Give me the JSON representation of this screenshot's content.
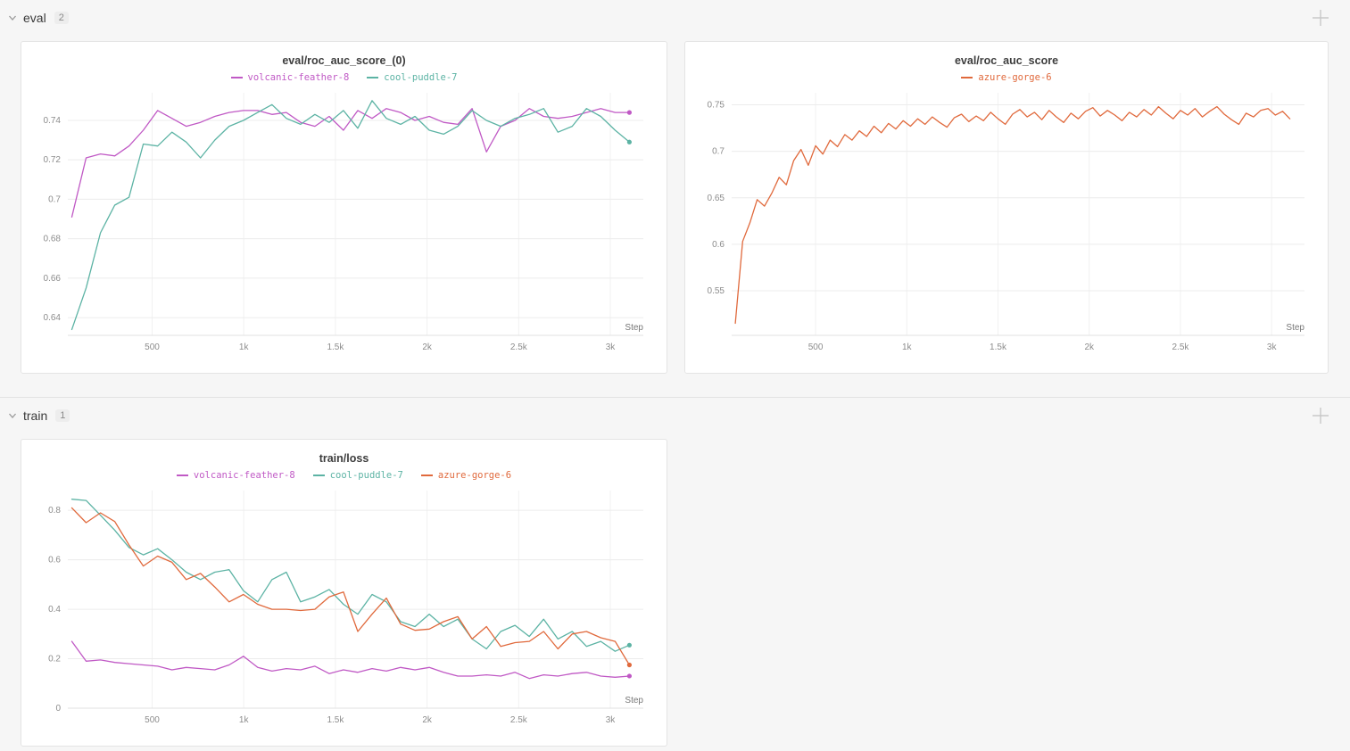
{
  "sections": [
    {
      "label": "eval",
      "count": "2"
    },
    {
      "label": "train",
      "count": "1"
    }
  ],
  "colors": {
    "magenta": "#c059c5",
    "teal": "#5cb3a4",
    "orange": "#e0693c",
    "grid": "#ececec",
    "axis": "#e0e0e0",
    "tick_text": "#8c8c8c"
  },
  "chart_data": [
    {
      "type": "line",
      "title": "eval/roc_auc_score_(0)",
      "xlabel": "Step",
      "xlim": [
        40,
        3180
      ],
      "ylim": [
        0.631,
        0.754
      ],
      "xticks": [
        500,
        1000,
        1500,
        2000,
        2500,
        3000
      ],
      "xtick_labels": [
        "500",
        "1k",
        "1.5k",
        "2k",
        "2.5k",
        "3k"
      ],
      "yticks": [
        0.64,
        0.66,
        0.68,
        0.7,
        0.72,
        0.74
      ],
      "end_dots": true,
      "series": [
        {
          "name": "volcanic-feather-8",
          "color": "#c059c5",
          "x": [
            62,
            140,
            218,
            296,
            374,
            452,
            530,
            608,
            686,
            764,
            842,
            920,
            998,
            1076,
            1154,
            1232,
            1310,
            1388,
            1466,
            1544,
            1622,
            1700,
            1778,
            1856,
            1934,
            2012,
            2090,
            2168,
            2246,
            2324,
            2402,
            2480,
            2558,
            2636,
            2714,
            2792,
            2870,
            2948,
            3026,
            3104
          ],
          "y": [
            0.691,
            0.721,
            0.723,
            0.722,
            0.727,
            0.735,
            0.745,
            0.741,
            0.737,
            0.739,
            0.742,
            0.744,
            0.745,
            0.745,
            0.743,
            0.744,
            0.739,
            0.737,
            0.742,
            0.735,
            0.745,
            0.741,
            0.746,
            0.744,
            0.74,
            0.742,
            0.739,
            0.738,
            0.746,
            0.724,
            0.737,
            0.74,
            0.746,
            0.742,
            0.741,
            0.742,
            0.744,
            0.746,
            0.744,
            0.744
          ]
        },
        {
          "name": "cool-puddle-7",
          "color": "#5cb3a4",
          "x": [
            62,
            140,
            218,
            296,
            374,
            452,
            530,
            608,
            686,
            764,
            842,
            920,
            998,
            1076,
            1154,
            1232,
            1310,
            1388,
            1466,
            1544,
            1622,
            1700,
            1778,
            1856,
            1934,
            2012,
            2090,
            2168,
            2246,
            2324,
            2402,
            2480,
            2558,
            2636,
            2714,
            2792,
            2870,
            2948,
            3026,
            3104
          ],
          "y": [
            0.634,
            0.655,
            0.683,
            0.697,
            0.701,
            0.728,
            0.727,
            0.734,
            0.729,
            0.721,
            0.73,
            0.737,
            0.74,
            0.744,
            0.748,
            0.741,
            0.738,
            0.743,
            0.739,
            0.745,
            0.736,
            0.75,
            0.741,
            0.738,
            0.742,
            0.735,
            0.733,
            0.737,
            0.745,
            0.74,
            0.737,
            0.741,
            0.743,
            0.746,
            0.734,
            0.737,
            0.746,
            0.742,
            0.735,
            0.729
          ]
        }
      ]
    },
    {
      "type": "line",
      "title": "eval/roc_auc_score",
      "xlabel": "Step",
      "xlim": [
        40,
        3180
      ],
      "ylim": [
        0.502,
        0.763
      ],
      "xticks": [
        500,
        1000,
        1500,
        2000,
        2500,
        3000
      ],
      "xtick_labels": [
        "500",
        "1k",
        "1.5k",
        "2k",
        "2.5k",
        "3k"
      ],
      "yticks": [
        0.55,
        0.6,
        0.65,
        0.7,
        0.75
      ],
      "end_dots": false,
      "series": [
        {
          "name": "azure-gorge-6",
          "color": "#e0693c",
          "x": [
            60,
            100,
            140,
            180,
            220,
            260,
            300,
            340,
            380,
            420,
            460,
            500,
            540,
            580,
            620,
            660,
            700,
            740,
            780,
            820,
            860,
            900,
            940,
            980,
            1020,
            1060,
            1100,
            1140,
            1180,
            1220,
            1260,
            1300,
            1340,
            1380,
            1420,
            1460,
            1500,
            1540,
            1580,
            1620,
            1660,
            1700,
            1740,
            1780,
            1820,
            1860,
            1900,
            1940,
            1980,
            2020,
            2060,
            2100,
            2140,
            2180,
            2220,
            2260,
            2300,
            2340,
            2380,
            2420,
            2460,
            2500,
            2540,
            2580,
            2620,
            2660,
            2700,
            2740,
            2780,
            2820,
            2860,
            2900,
            2940,
            2980,
            3020,
            3060,
            3100
          ],
          "y": [
            0.515,
            0.603,
            0.623,
            0.648,
            0.641,
            0.655,
            0.672,
            0.664,
            0.69,
            0.702,
            0.685,
            0.706,
            0.697,
            0.712,
            0.705,
            0.718,
            0.712,
            0.722,
            0.716,
            0.727,
            0.72,
            0.73,
            0.724,
            0.733,
            0.727,
            0.735,
            0.729,
            0.737,
            0.731,
            0.726,
            0.736,
            0.74,
            0.732,
            0.738,
            0.733,
            0.742,
            0.735,
            0.729,
            0.74,
            0.745,
            0.737,
            0.742,
            0.734,
            0.744,
            0.737,
            0.731,
            0.741,
            0.735,
            0.743,
            0.747,
            0.738,
            0.744,
            0.739,
            0.733,
            0.742,
            0.737,
            0.745,
            0.739,
            0.748,
            0.741,
            0.735,
            0.744,
            0.739,
            0.746,
            0.737,
            0.743,
            0.748,
            0.74,
            0.734,
            0.729,
            0.741,
            0.737,
            0.744,
            0.746,
            0.739,
            0.743,
            0.735
          ]
        }
      ]
    },
    {
      "type": "line",
      "title": "train/loss",
      "xlabel": "Step",
      "xlim": [
        40,
        3180
      ],
      "ylim": [
        0,
        0.88
      ],
      "xticks": [
        500,
        1000,
        1500,
        2000,
        2500,
        3000
      ],
      "xtick_labels": [
        "500",
        "1k",
        "1.5k",
        "2k",
        "2.5k",
        "3k"
      ],
      "yticks": [
        0,
        0.2,
        0.4,
        0.6,
        0.8
      ],
      "end_dots": true,
      "series": [
        {
          "name": "volcanic-feather-8",
          "color": "#c059c5",
          "x": [
            62,
            140,
            218,
            296,
            374,
            452,
            530,
            608,
            686,
            764,
            842,
            920,
            998,
            1076,
            1154,
            1232,
            1310,
            1388,
            1466,
            1544,
            1622,
            1700,
            1778,
            1856,
            1934,
            2012,
            2090,
            2168,
            2246,
            2324,
            2402,
            2480,
            2558,
            2636,
            2714,
            2792,
            2870,
            2948,
            3026,
            3104
          ],
          "y": [
            0.27,
            0.19,
            0.195,
            0.185,
            0.18,
            0.175,
            0.17,
            0.155,
            0.165,
            0.16,
            0.155,
            0.175,
            0.21,
            0.165,
            0.15,
            0.16,
            0.155,
            0.17,
            0.14,
            0.155,
            0.145,
            0.16,
            0.15,
            0.165,
            0.155,
            0.165,
            0.145,
            0.13,
            0.13,
            0.135,
            0.13,
            0.145,
            0.12,
            0.135,
            0.13,
            0.14,
            0.145,
            0.13,
            0.125,
            0.13
          ]
        },
        {
          "name": "cool-puddle-7",
          "color": "#5cb3a4",
          "x": [
            62,
            140,
            218,
            296,
            374,
            452,
            530,
            608,
            686,
            764,
            842,
            920,
            998,
            1076,
            1154,
            1232,
            1310,
            1388,
            1466,
            1544,
            1622,
            1700,
            1778,
            1856,
            1934,
            2012,
            2090,
            2168,
            2246,
            2324,
            2402,
            2480,
            2558,
            2636,
            2714,
            2792,
            2870,
            2948,
            3026,
            3104
          ],
          "y": [
            0.845,
            0.84,
            0.78,
            0.72,
            0.65,
            0.62,
            0.645,
            0.6,
            0.55,
            0.52,
            0.55,
            0.56,
            0.475,
            0.43,
            0.52,
            0.55,
            0.43,
            0.45,
            0.48,
            0.42,
            0.38,
            0.46,
            0.43,
            0.35,
            0.33,
            0.38,
            0.33,
            0.36,
            0.28,
            0.24,
            0.31,
            0.335,
            0.29,
            0.36,
            0.28,
            0.31,
            0.25,
            0.27,
            0.23,
            0.255
          ]
        },
        {
          "name": "azure-gorge-6",
          "color": "#e0693c",
          "x": [
            62,
            140,
            218,
            296,
            374,
            452,
            530,
            608,
            686,
            764,
            842,
            920,
            998,
            1076,
            1154,
            1232,
            1310,
            1388,
            1466,
            1544,
            1622,
            1700,
            1778,
            1856,
            1934,
            2012,
            2090,
            2168,
            2246,
            2324,
            2402,
            2480,
            2558,
            2636,
            2714,
            2792,
            2870,
            2948,
            3026,
            3104
          ],
          "y": [
            0.81,
            0.75,
            0.79,
            0.755,
            0.66,
            0.575,
            0.615,
            0.59,
            0.52,
            0.545,
            0.49,
            0.43,
            0.46,
            0.42,
            0.4,
            0.4,
            0.395,
            0.4,
            0.45,
            0.47,
            0.31,
            0.38,
            0.445,
            0.34,
            0.315,
            0.32,
            0.35,
            0.37,
            0.28,
            0.33,
            0.25,
            0.265,
            0.27,
            0.31,
            0.24,
            0.3,
            0.31,
            0.285,
            0.27,
            0.175
          ]
        }
      ]
    }
  ]
}
